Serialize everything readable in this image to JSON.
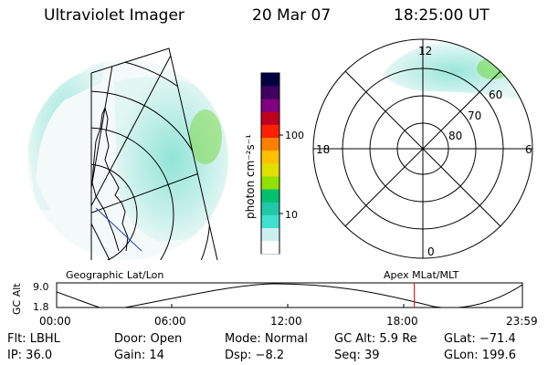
{
  "header": {
    "instrument": "Ultraviolet Imager",
    "date": "20 Mar 07",
    "time": "18:25:00 UT"
  },
  "colorbar": {
    "label": "photon cm⁻²s⁻¹",
    "ticks": [
      "100",
      "10"
    ],
    "scale": "log",
    "colors": [
      "#ffffff",
      "#ccf0f0",
      "#40e0d0",
      "#20c8a8",
      "#00c070",
      "#90e000",
      "#e0e000",
      "#ffc000",
      "#ff8000",
      "#ff2000",
      "#c00020",
      "#800080",
      "#400060",
      "#000040"
    ]
  },
  "polar_plot": {
    "mlt_labels": [
      "12",
      "18",
      "6",
      "0"
    ],
    "mlat_labels": [
      "60",
      "70",
      "80"
    ]
  },
  "geographic_plot": {
    "label": "Geographic Lat/Lon"
  },
  "altitude_plot": {
    "ylabel": "GC Alt",
    "y_ticks": [
      "9.0",
      "1.8"
    ],
    "x_ticks": [
      "00:00",
      "06:00",
      "12:00",
      "18:00",
      "23:59"
    ],
    "right_label": "Apex  MLat/MLT",
    "marker_time": "18:25",
    "marker_color": "#e02020"
  },
  "status": {
    "flt": "Flt: LBHL",
    "door": "Door: Open",
    "mode": "Mode: Normal",
    "gc_alt": "GC Alt: 5.9 Re",
    "glat": "GLat: −71.4",
    "ip": "IP: 36.0",
    "gain": "Gain: 14",
    "dsp": "Dsp:   −8.2",
    "seq": "Seq: 39",
    "glon": "GLon: 199.6"
  }
}
